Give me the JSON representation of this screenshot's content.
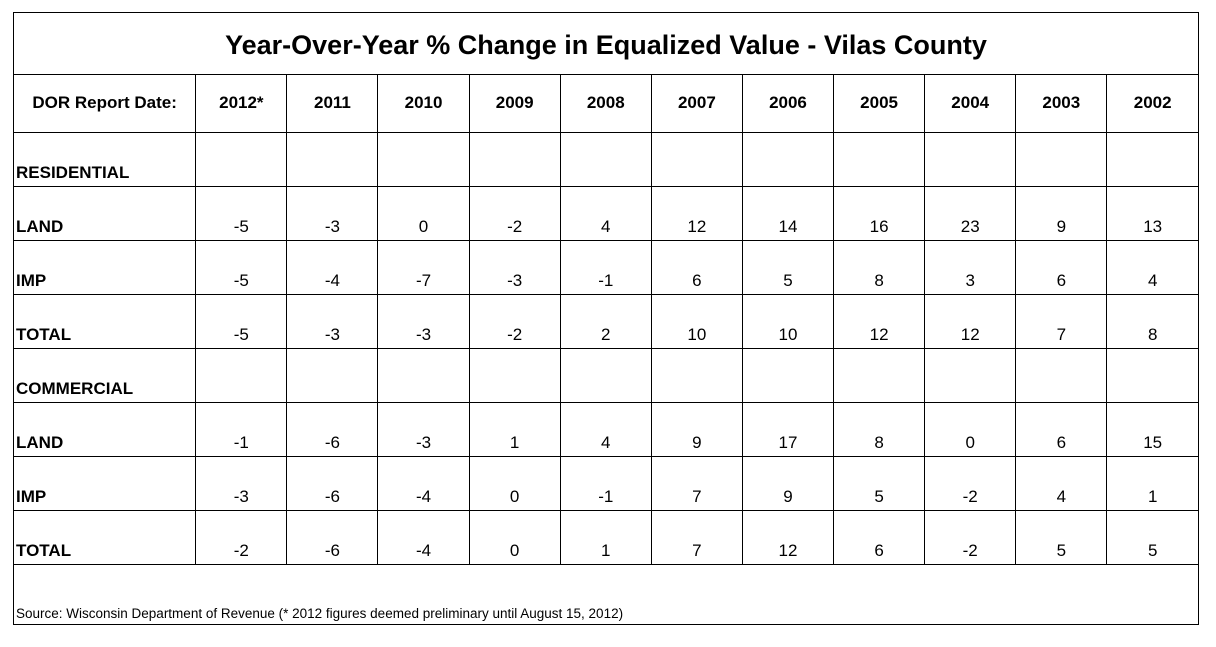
{
  "chart_data": {
    "type": "table",
    "title": "Year-Over-Year % Change in Equalized Value - Vilas County",
    "header_label": "DOR Report Date:",
    "columns": [
      "2012*",
      "2011",
      "2010",
      "2009",
      "2008",
      "2007",
      "2006",
      "2005",
      "2004",
      "2003",
      "2002"
    ],
    "sections": [
      {
        "name": "RESIDENTIAL",
        "rows": [
          {
            "label": "LAND",
            "values": [
              "-5",
              "-3",
              "0",
              "-2",
              "4",
              "12",
              "14",
              "16",
              "23",
              "9",
              "13"
            ]
          },
          {
            "label": "IMP",
            "values": [
              "-5",
              "-4",
              "-7",
              "-3",
              "-1",
              "6",
              "5",
              "8",
              "3",
              "6",
              "4"
            ]
          },
          {
            "label": "TOTAL",
            "values": [
              "-5",
              "-3",
              "-3",
              "-2",
              "2",
              "10",
              "10",
              "12",
              "12",
              "7",
              "8"
            ]
          }
        ]
      },
      {
        "name": "COMMERCIAL",
        "rows": [
          {
            "label": "LAND",
            "values": [
              "-1",
              "-6",
              "-3",
              "1",
              "4",
              "9",
              "17",
              "8",
              "0",
              "6",
              "15"
            ]
          },
          {
            "label": "IMP",
            "values": [
              "-3",
              "-6",
              "-4",
              "0",
              "-1",
              "7",
              "9",
              "5",
              "-2",
              "4",
              "1"
            ]
          },
          {
            "label": "TOTAL",
            "values": [
              "-2",
              "-6",
              "-4",
              "0",
              "1",
              "7",
              "12",
              "6",
              "-2",
              "5",
              "5"
            ]
          }
        ]
      }
    ],
    "source": "Source:  Wisconsin Department of Revenue (* 2012 figures deemed preliminary until August 15, 2012)"
  }
}
